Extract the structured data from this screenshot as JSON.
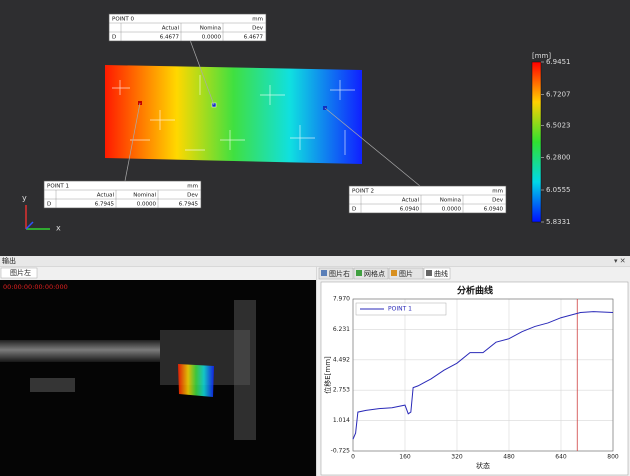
{
  "view3d": {
    "unit_label": "[mm]",
    "colorbar_lim": [
      5.8331,
      6.9451
    ],
    "colorbar_ticks": [
      6.9451,
      6.7207,
      6.5023,
      {
        "value": 6.28,
        "label": "6.2800"
      },
      6.0555,
      5.8331
    ],
    "axis_y": "y",
    "axis_x": "x",
    "points": [
      {
        "name": "POINT 0",
        "unit": "mm",
        "headers": [
          "Actual",
          "Nomina",
          "Dev"
        ],
        "row": [
          "D",
          "6.4677",
          "0.0000",
          "6.4677"
        ]
      },
      {
        "name": "POINT 1",
        "unit": "mm",
        "headers": [
          "Actual",
          "Nominal",
          "Dev"
        ],
        "row": [
          "D",
          "6.7945",
          "0.0000",
          "6.7945"
        ]
      },
      {
        "name": "POINT 2",
        "unit": "mm",
        "headers": [
          "Actual",
          "Nomina",
          "Dev"
        ],
        "row": [
          "D",
          "6.0940",
          "0.0000",
          "6.0940"
        ]
      }
    ]
  },
  "output": {
    "title": "输出",
    "tab": "图片左",
    "timestamp": "00:00:00:00:00:000"
  },
  "tabs": [
    "图片右",
    "网格点",
    "图片",
    "曲线"
  ],
  "chart_data": {
    "type": "line",
    "title": "分析曲线",
    "x_label": "状态",
    "y_label": "位移E[mm]",
    "x": [
      0,
      8,
      15,
      40,
      80,
      120,
      160,
      170,
      178,
      185,
      200,
      240,
      280,
      320,
      360,
      400,
      440,
      480,
      520,
      560,
      600,
      640,
      680,
      700,
      740,
      800
    ],
    "series": [
      {
        "name": "POINT 1",
        "color": "#2a2ab8",
        "values": [
          -0.05,
          0.3,
          1.5,
          1.6,
          1.7,
          1.75,
          1.9,
          1.4,
          1.5,
          2.9,
          3.0,
          3.4,
          3.9,
          4.3,
          4.9,
          4.9,
          5.5,
          5.7,
          6.1,
          6.4,
          6.6,
          6.9,
          7.1,
          7.2,
          7.25,
          7.2
        ]
      }
    ],
    "xlim": [
      0,
      800
    ],
    "ylim": [
      -0.725,
      7.97
    ],
    "xticks": [
      0,
      160,
      320,
      480,
      640,
      800
    ],
    "yticks": [
      -0.725,
      1.014,
      2.753,
      4.492,
      6.231,
      {
        "value": 7.97,
        "label": "7.970"
      }
    ],
    "grid": true,
    "legend": "upper left",
    "cursor_x": 690,
    "cursor_color": "#d04040"
  }
}
